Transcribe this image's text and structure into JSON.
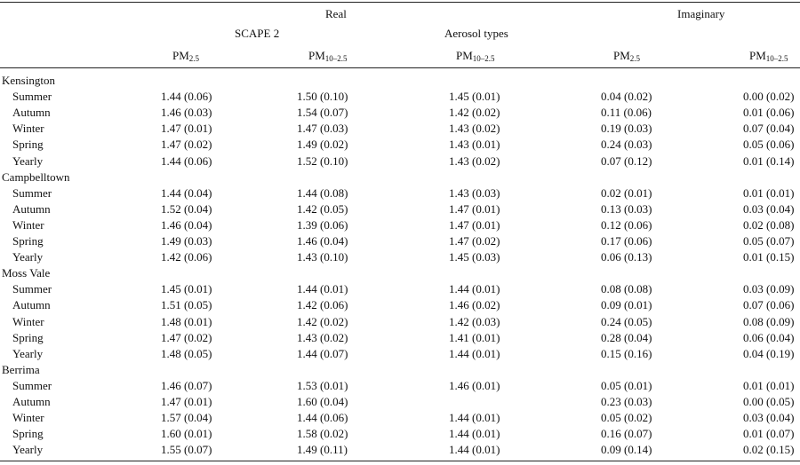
{
  "header": {
    "real": "Real",
    "imaginary": "Imaginary",
    "scape": "SCAPE 2",
    "aerosol": "Aerosol types",
    "columns": [
      {
        "base": "PM",
        "sub": "2.5"
      },
      {
        "base": "PM",
        "sub": "10–2.5"
      },
      {
        "base": "PM",
        "sub": "10–2.5"
      },
      {
        "base": "PM",
        "sub": "2.5"
      },
      {
        "base": "PM",
        "sub": "10–2.5"
      }
    ]
  },
  "sites": [
    {
      "name": "Kensington",
      "rows": [
        {
          "season": "Summer",
          "values": [
            "1.44 (0.06)",
            "1.50 (0.10)",
            "1.45 (0.01)",
            "0.04 (0.02)",
            "0.00 (0.02)"
          ]
        },
        {
          "season": "Autumn",
          "values": [
            "1.46 (0.03)",
            "1.54 (0.07)",
            "1.42 (0.02)",
            "0.11 (0.06)",
            "0.01 (0.06)"
          ]
        },
        {
          "season": "Winter",
          "values": [
            "1.47 (0.01)",
            "1.47 (0.03)",
            "1.43 (0.02)",
            "0.19 (0.03)",
            "0.07 (0.04)"
          ]
        },
        {
          "season": "Spring",
          "values": [
            "1.47 (0.02)",
            "1.49 (0.02)",
            "1.43 (0.01)",
            "0.24 (0.03)",
            "0.05 (0.06)"
          ]
        },
        {
          "season": "Yearly",
          "values": [
            "1.44 (0.06)",
            "1.52 (0.10)",
            "1.43 (0.02)",
            "0.07 (0.12)",
            "0.01 (0.14)"
          ]
        }
      ]
    },
    {
      "name": "Campbelltown",
      "rows": [
        {
          "season": "Summer",
          "values": [
            "1.44 (0.04)",
            "1.44 (0.08)",
            "1.43 (0.03)",
            "0.02 (0.01)",
            "0.01 (0.01)"
          ]
        },
        {
          "season": "Autumn",
          "values": [
            "1.52 (0.04)",
            "1.42 (0.05)",
            "1.47 (0.01)",
            "0.13 (0.03)",
            "0.03 (0.04)"
          ]
        },
        {
          "season": "Winter",
          "values": [
            "1.46 (0.04)",
            "1.39 (0.06)",
            "1.47 (0.01)",
            "0.12 (0.06)",
            "0.02 (0.08)"
          ]
        },
        {
          "season": "Spring",
          "values": [
            "1.49 (0.03)",
            "1.46 (0.04)",
            "1.47 (0.02)",
            "0.17 (0.06)",
            "0.05 (0.07)"
          ]
        },
        {
          "season": "Yearly",
          "values": [
            "1.42 (0.06)",
            "1.43 (0.10)",
            "1.45 (0.03)",
            "0.06 (0.13)",
            "0.01 (0.15)"
          ]
        }
      ]
    },
    {
      "name": "Moss Vale",
      "rows": [
        {
          "season": "Summer",
          "values": [
            "1.45 (0.01)",
            "1.44 (0.01)",
            "1.44 (0.01)",
            "0.08 (0.08)",
            "0.03 (0.09)"
          ]
        },
        {
          "season": "Autumn",
          "values": [
            "1.51 (0.05)",
            "1.42 (0.06)",
            "1.46 (0.02)",
            "0.09 (0.01)",
            "0.07 (0.06)"
          ]
        },
        {
          "season": "Winter",
          "values": [
            "1.48 (0.01)",
            "1.42 (0.02)",
            "1.42 (0.03)",
            "0.24 (0.05)",
            "0.08 (0.09)"
          ]
        },
        {
          "season": "Spring",
          "values": [
            "1.47 (0.02)",
            "1.43 (0.02)",
            "1.41 (0.01)",
            "0.28 (0.04)",
            "0.06 (0.04)"
          ]
        },
        {
          "season": "Yearly",
          "values": [
            "1.48 (0.05)",
            "1.44 (0.07)",
            "1.44 (0.01)",
            "0.15 (0.16)",
            "0.04 (0.19)"
          ]
        }
      ]
    },
    {
      "name": "Berrima",
      "rows": [
        {
          "season": "Summer",
          "values": [
            "1.46 (0.07)",
            "1.53 (0.01)",
            "1.46 (0.01)",
            "0.05 (0.01)",
            "0.01 (0.01)"
          ]
        },
        {
          "season": "Autumn",
          "values": [
            "1.47 (0.01)",
            "1.60 (0.04)",
            "",
            "0.23 (0.03)",
            "0.00 (0.05)"
          ]
        },
        {
          "season": "Winter",
          "values": [
            "1.57 (0.04)",
            "1.44 (0.06)",
            "1.44 (0.01)",
            "0.05 (0.02)",
            "0.03 (0.04)"
          ]
        },
        {
          "season": "Spring",
          "values": [
            "1.60 (0.01)",
            "1.58 (0.02)",
            "1.44 (0.01)",
            "0.16 (0.07)",
            "0.01 (0.07)"
          ]
        },
        {
          "season": "Yearly",
          "values": [
            "1.55 (0.07)",
            "1.49 (0.11)",
            "1.44 (0.01)",
            "0.09 (0.14)",
            "0.02 (0.15)"
          ]
        }
      ]
    }
  ]
}
